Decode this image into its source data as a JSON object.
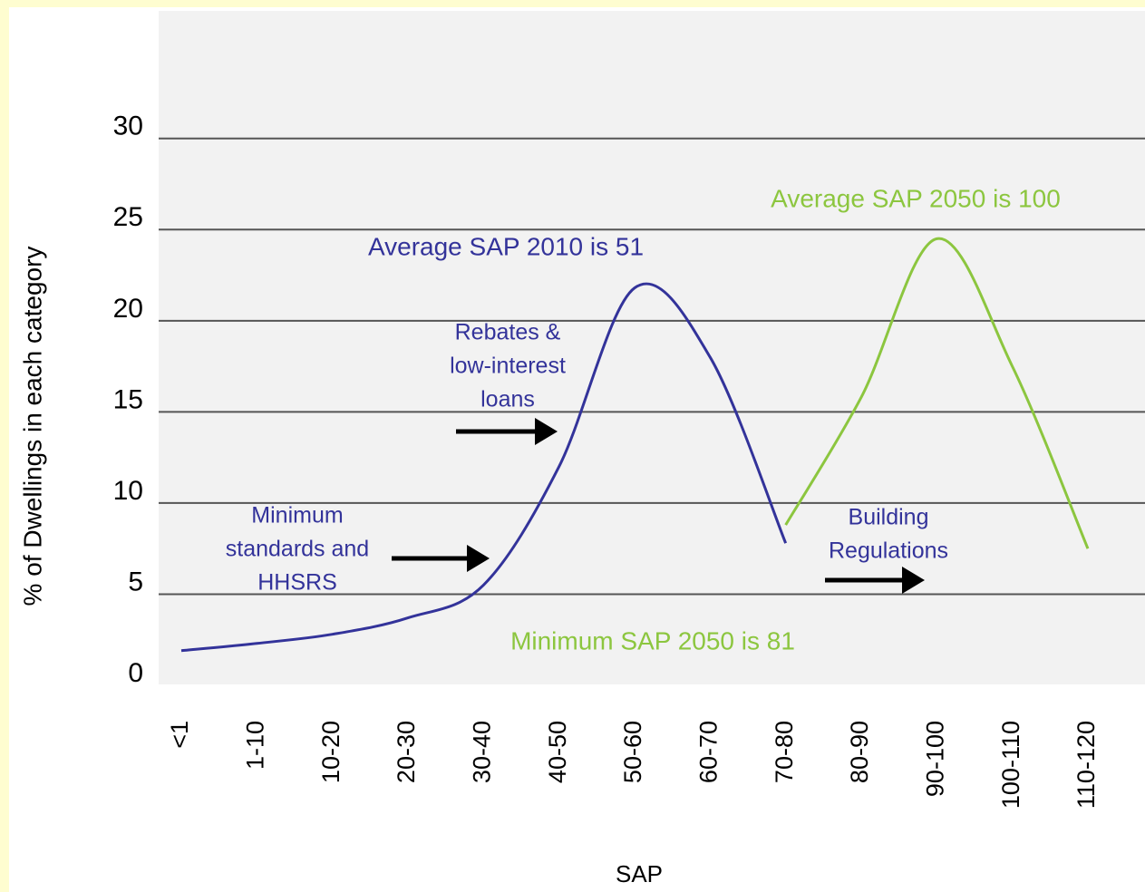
{
  "chart_data": {
    "type": "line",
    "y_label": "% of Dwellings in each category",
    "x_label": "SAP",
    "categories": [
      "<1",
      "1-10",
      "10-20",
      "20-30",
      "30-40",
      "40-50",
      "50-60",
      "60-70",
      "70-80",
      "80-90",
      "90-100",
      "100-110",
      "110-120"
    ],
    "series": [
      {
        "name": "SAP 2010",
        "color": "#33339a",
        "values": [
          1.9,
          2.3,
          2.8,
          3.7,
          5.5,
          12,
          21.8,
          18,
          7.8,
          null,
          null,
          null,
          null
        ]
      },
      {
        "name": "SAP 2050",
        "color": "#8cc63f",
        "values": [
          null,
          null,
          null,
          null,
          null,
          null,
          null,
          null,
          8.8,
          15.8,
          24.5,
          17.5,
          7.5
        ]
      }
    ],
    "ylim": [
      0,
      37
    ],
    "yticks": [
      0,
      5,
      10,
      15,
      20,
      25,
      30
    ],
    "grid": true,
    "annotations": [
      {
        "lines": [
          "Average SAP 2010 is 51"
        ],
        "color": "#33339a"
      },
      {
        "lines": [
          "Average SAP 2050 is 100"
        ],
        "color": "#8cc63f"
      },
      {
        "lines": [
          "Rebates &",
          "low-interest",
          "loans"
        ],
        "color": "#33339a"
      },
      {
        "lines": [
          "Minimum",
          "standards and",
          "HHSRS"
        ],
        "color": "#33339a"
      },
      {
        "lines": [
          "Building",
          "Regulations"
        ],
        "color": "#33339a"
      },
      {
        "lines": [
          "Minimum SAP 2050 is 81"
        ],
        "color": "#8cc63f"
      }
    ]
  }
}
